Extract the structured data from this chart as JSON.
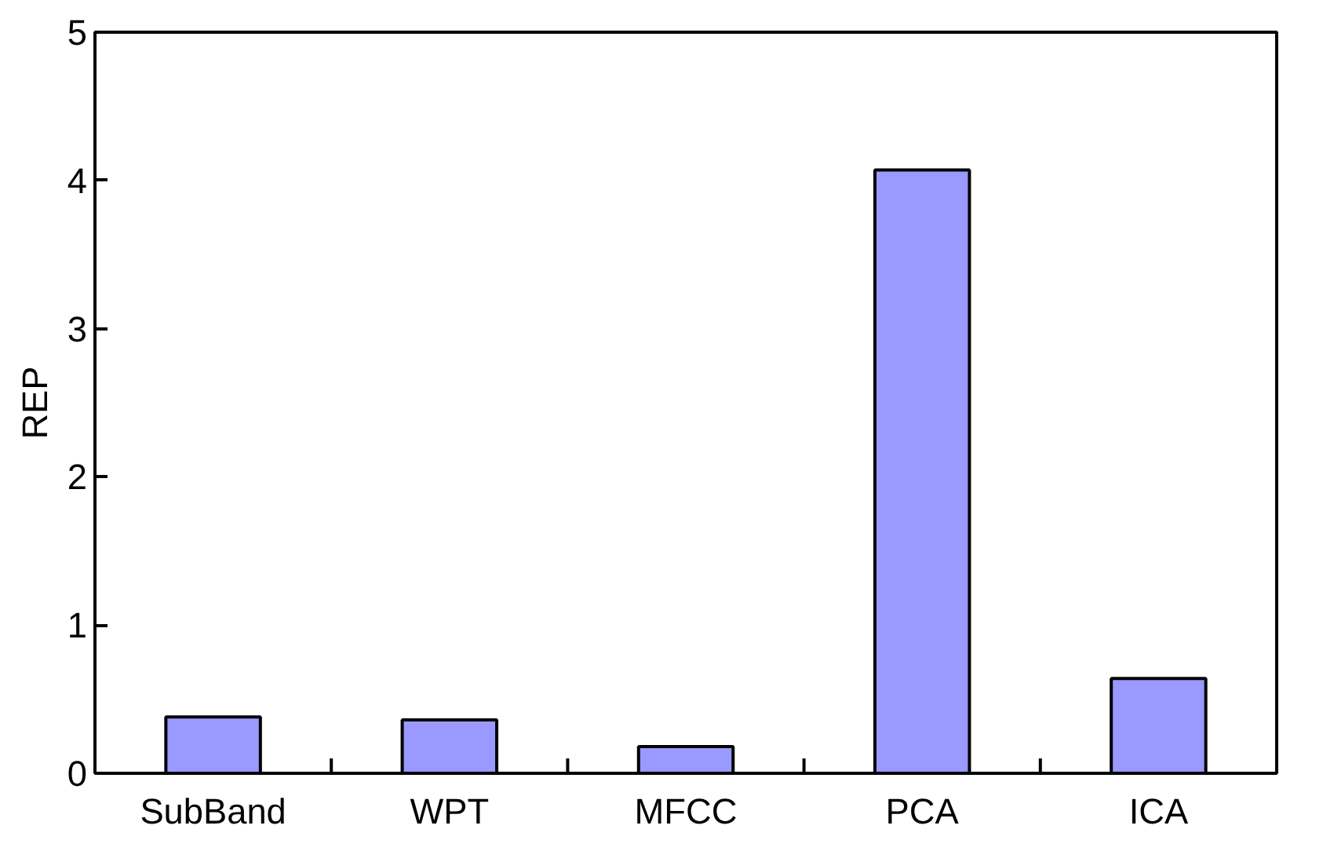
{
  "chart_data": {
    "type": "bar",
    "ylabel": "REP",
    "categories": [
      "SubBand",
      "WPT",
      "MFCC",
      "PCA",
      "ICA"
    ],
    "values": [
      0.38,
      0.36,
      0.18,
      4.07,
      0.64
    ],
    "color": "#9999ff",
    "ylim": [
      0,
      5
    ],
    "yticks": [
      0,
      1,
      2,
      3,
      4,
      5
    ],
    "grid": false
  }
}
